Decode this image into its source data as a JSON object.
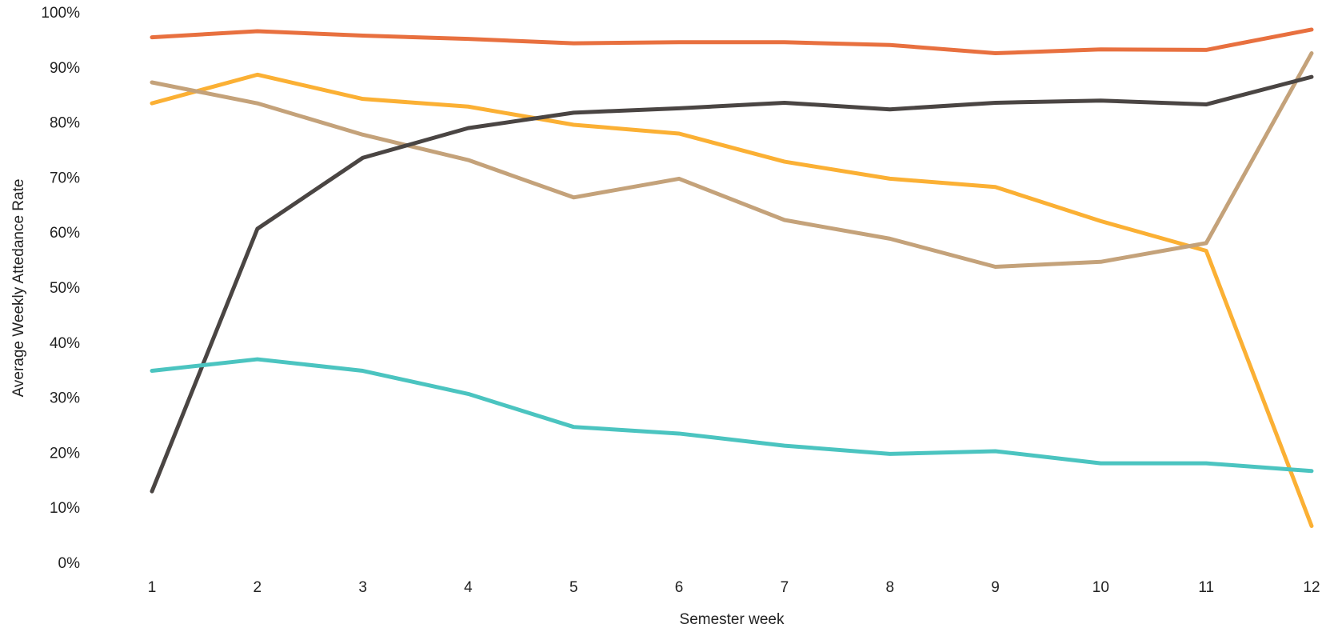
{
  "chart_data": {
    "type": "line",
    "x_label": "Semester week",
    "y_label": "Average Weekly Attedance Rate",
    "x": [
      1,
      2,
      3,
      4,
      5,
      6,
      7,
      8,
      9,
      10,
      11,
      12
    ],
    "xlim": [
      1,
      12
    ],
    "xticks": [
      1,
      2,
      3,
      4,
      5,
      6,
      7,
      8,
      9,
      10,
      11,
      12
    ],
    "ylim": [
      0,
      100
    ],
    "yticks": [
      {
        "value": 0,
        "label": "0%"
      },
      {
        "value": 10,
        "label": "10%"
      },
      {
        "value": 20,
        "label": "20%"
      },
      {
        "value": 30,
        "label": "30%"
      },
      {
        "value": 40,
        "label": "40%"
      },
      {
        "value": 50,
        "label": "50%"
      },
      {
        "value": 60,
        "label": "60%"
      },
      {
        "value": 70,
        "label": "70%"
      },
      {
        "value": 80,
        "label": "80%"
      },
      {
        "value": 90,
        "label": "90%"
      },
      {
        "value": 100,
        "label": "100%"
      }
    ],
    "grid": false,
    "series": [
      {
        "color": "#e8703f",
        "values": [
          95.7,
          96.8,
          96.0,
          95.4,
          94.6,
          94.8,
          94.8,
          94.3,
          92.8,
          93.5,
          93.4,
          97.1
        ]
      },
      {
        "color": "#fbb034",
        "values": [
          83.7,
          88.9,
          84.5,
          83.1,
          79.8,
          78.2,
          73.1,
          70.0,
          68.5,
          62.3,
          56.9,
          6.9
        ]
      },
      {
        "color": "#c4a27a",
        "values": [
          87.5,
          83.7,
          78.0,
          73.4,
          66.6,
          70.0,
          62.5,
          59.1,
          54.0,
          54.9,
          58.3,
          92.8
        ]
      },
      {
        "color": "#4a4543",
        "values": [
          13.2,
          60.9,
          73.8,
          79.2,
          82.0,
          82.8,
          83.8,
          82.6,
          83.8,
          84.2,
          83.5,
          88.5
        ]
      },
      {
        "color": "#4bc4c0",
        "values": [
          35.1,
          37.2,
          35.1,
          30.9,
          24.9,
          23.7,
          21.5,
          20.0,
          20.5,
          18.3,
          18.3,
          16.9
        ]
      }
    ]
  }
}
